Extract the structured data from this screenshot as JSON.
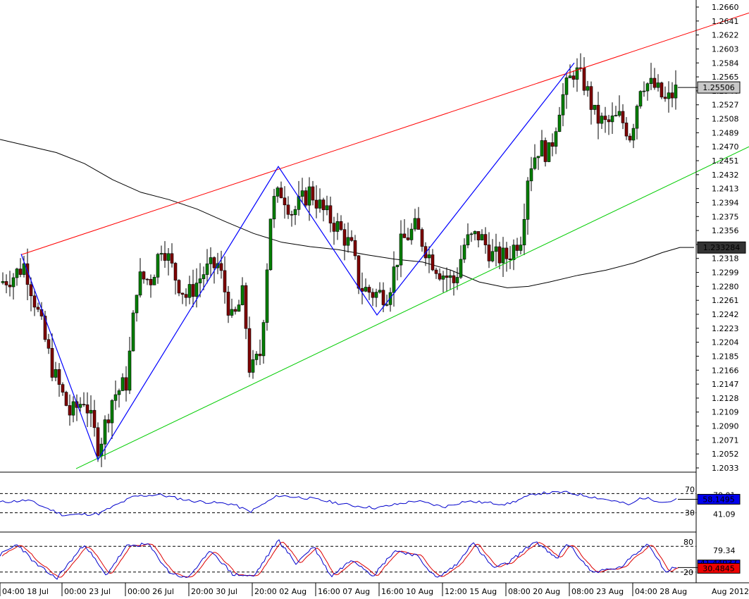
{
  "chart_data": {
    "type": "candlestick",
    "symbol_hint": "",
    "price_axis": {
      "ticks": [
        "1.2660",
        "1.2641",
        "1.2622",
        "1.2603",
        "1.2584",
        "1.2565",
        "1.2546",
        "1.2527",
        "1.2508",
        "1.2489",
        "1.2470",
        "1.2451",
        "1.2432",
        "1.2413",
        "1.2394",
        "1.2375",
        "1.2356",
        "1.2337",
        "1.2318",
        "1.2299",
        "1.2280",
        "1.2261",
        "1.2242",
        "1.2223",
        "1.2204",
        "1.2185",
        "1.2166",
        "1.2147",
        "1.2128",
        "1.2109",
        "1.2090",
        "1.2071",
        "1.2052",
        "1.2033"
      ],
      "ylim": [
        1.2024,
        1.2674
      ],
      "last_price_label": "1.25506",
      "ma_label": "1.233284"
    },
    "time_axis": {
      "labels": [
        "04:00 18 Jul",
        "00:00 23 Jul",
        "00:00 26 Jul",
        "20:00 30 Jul",
        "20:00 02 Aug",
        "16:00 07 Aug",
        "16:00 10 Aug",
        "12:00 15 Aug",
        "08:00 20 Aug",
        "08:00 23 Aug",
        "04:00 28 Aug"
      ],
      "right_label": "Aug 2012"
    },
    "rsi": {
      "levels": [
        "70",
        "30"
      ],
      "values_shown": [
        "70.01",
        "58.1495",
        "41.09"
      ],
      "colors": {
        "line": "#0000cc",
        "badge": "#0000ee"
      }
    },
    "stochastic": {
      "levels": [
        "80",
        "20"
      ],
      "values_shown": [
        "79.34",
        "41.44037",
        "30.4845"
      ],
      "colors": {
        "k": "#0000cc",
        "d": "#dd0000",
        "badge_d": "#ee0000"
      }
    },
    "colors": {
      "bull_candle": "#008000",
      "bear_candle": "#800000",
      "upper_channel": "#ff0000",
      "lower_channel": "#00cc00",
      "zigzag": "#0000ff",
      "moving_average": "#000000",
      "gridline": "#000000"
    },
    "upper_channel": [
      {
        "t": 30,
        "p": 1.2323
      },
      {
        "t": 1063,
        "p": 1.2652
      }
    ],
    "lower_channel": [
      {
        "t": 108,
        "p": 1.2032
      },
      {
        "t": 1063,
        "p": 1.247
      }
    ],
    "zigzag": [
      {
        "t": 30,
        "p": 1.2324
      },
      {
        "t": 139,
        "p": 1.2044
      },
      {
        "t": 395,
        "p": 1.2443
      },
      {
        "t": 535,
        "p": 1.2241
      },
      {
        "t": 815,
        "p": 1.2584
      }
    ],
    "moving_average": [
      {
        "t": 0,
        "p": 1.248
      },
      {
        "t": 40,
        "p": 1.2471
      },
      {
        "t": 80,
        "p": 1.2462
      },
      {
        "t": 120,
        "p": 1.2447
      },
      {
        "t": 160,
        "p": 1.2425
      },
      {
        "t": 200,
        "p": 1.2408
      },
      {
        "t": 240,
        "p": 1.2398
      },
      {
        "t": 280,
        "p": 1.2385
      },
      {
        "t": 320,
        "p": 1.2368
      },
      {
        "t": 360,
        "p": 1.2352
      },
      {
        "t": 400,
        "p": 1.234
      },
      {
        "t": 440,
        "p": 1.2334
      },
      {
        "t": 480,
        "p": 1.233
      },
      {
        "t": 520,
        "p": 1.2323
      },
      {
        "t": 560,
        "p": 1.2317
      },
      {
        "t": 600,
        "p": 1.2313
      },
      {
        "t": 640,
        "p": 1.2302
      },
      {
        "t": 680,
        "p": 1.2286
      },
      {
        "t": 720,
        "p": 1.2278
      },
      {
        "t": 750,
        "p": 1.228
      },
      {
        "t": 780,
        "p": 1.2286
      },
      {
        "t": 820,
        "p": 1.2295
      },
      {
        "t": 860,
        "p": 1.2302
      },
      {
        "t": 900,
        "p": 1.2312
      },
      {
        "t": 940,
        "p": 1.2326
      },
      {
        "t": 965,
        "p": 1.2333
      },
      {
        "t": 985,
        "p": 1.2333
      }
    ],
    "candle_anchors": [
      {
        "t": 0,
        "p": 1.2285
      },
      {
        "t": 20,
        "p": 1.2295
      },
      {
        "t": 35,
        "p": 1.231
      },
      {
        "t": 55,
        "p": 1.224
      },
      {
        "t": 75,
        "p": 1.2165
      },
      {
        "t": 100,
        "p": 1.2105
      },
      {
        "t": 120,
        "p": 1.2128
      },
      {
        "t": 140,
        "p": 1.206
      },
      {
        "t": 160,
        "p": 1.213
      },
      {
        "t": 180,
        "p": 1.215
      },
      {
        "t": 195,
        "p": 1.229
      },
      {
        "t": 215,
        "p": 1.229
      },
      {
        "t": 230,
        "p": 1.234
      },
      {
        "t": 250,
        "p": 1.229
      },
      {
        "t": 265,
        "p": 1.2265
      },
      {
        "t": 290,
        "p": 1.23
      },
      {
        "t": 310,
        "p": 1.231
      },
      {
        "t": 330,
        "p": 1.223
      },
      {
        "t": 345,
        "p": 1.227
      },
      {
        "t": 355,
        "p": 1.216
      },
      {
        "t": 370,
        "p": 1.219
      },
      {
        "t": 385,
        "p": 1.239
      },
      {
        "t": 400,
        "p": 1.241
      },
      {
        "t": 415,
        "p": 1.238
      },
      {
        "t": 440,
        "p": 1.241
      },
      {
        "t": 460,
        "p": 1.238
      },
      {
        "t": 480,
        "p": 1.236
      },
      {
        "t": 500,
        "p": 1.233
      },
      {
        "t": 510,
        "p": 1.228
      },
      {
        "t": 530,
        "p": 1.227
      },
      {
        "t": 550,
        "p": 1.227
      },
      {
        "t": 570,
        "p": 1.234
      },
      {
        "t": 590,
        "p": 1.236
      },
      {
        "t": 610,
        "p": 1.232
      },
      {
        "t": 625,
        "p": 1.23
      },
      {
        "t": 645,
        "p": 1.2285
      },
      {
        "t": 660,
        "p": 1.234
      },
      {
        "t": 680,
        "p": 1.235
      },
      {
        "t": 700,
        "p": 1.232
      },
      {
        "t": 720,
        "p": 1.232
      },
      {
        "t": 740,
        "p": 1.235
      },
      {
        "t": 750,
        "p": 1.244
      },
      {
        "t": 765,
        "p": 1.247
      },
      {
        "t": 780,
        "p": 1.246
      },
      {
        "t": 795,
        "p": 1.253
      },
      {
        "t": 815,
        "p": 1.2575
      },
      {
        "t": 830,
        "p": 1.2555
      },
      {
        "t": 845,
        "p": 1.251
      },
      {
        "t": 860,
        "p": 1.25
      },
      {
        "t": 880,
        "p": 1.251
      },
      {
        "t": 895,
        "p": 1.2485
      },
      {
        "t": 910,
        "p": 1.256
      },
      {
        "t": 930,
        "p": 1.255
      },
      {
        "t": 945,
        "p": 1.253
      },
      {
        "t": 962,
        "p": 1.255
      }
    ],
    "rsi_anchors": [
      {
        "t": 0,
        "v": 52
      },
      {
        "t": 40,
        "v": 56
      },
      {
        "t": 90,
        "v": 25
      },
      {
        "t": 140,
        "v": 28
      },
      {
        "t": 190,
        "v": 64
      },
      {
        "t": 225,
        "v": 68
      },
      {
        "t": 270,
        "v": 55
      },
      {
        "t": 330,
        "v": 48
      },
      {
        "t": 355,
        "v": 32
      },
      {
        "t": 395,
        "v": 66
      },
      {
        "t": 440,
        "v": 60
      },
      {
        "t": 500,
        "v": 45
      },
      {
        "t": 535,
        "v": 40
      },
      {
        "t": 590,
        "v": 55
      },
      {
        "t": 630,
        "v": 42
      },
      {
        "t": 660,
        "v": 54
      },
      {
        "t": 720,
        "v": 48
      },
      {
        "t": 760,
        "v": 70
      },
      {
        "t": 800,
        "v": 73
      },
      {
        "t": 830,
        "v": 66
      },
      {
        "t": 870,
        "v": 55
      },
      {
        "t": 895,
        "v": 46
      },
      {
        "t": 910,
        "v": 62
      },
      {
        "t": 945,
        "v": 52
      },
      {
        "t": 962,
        "v": 58
      }
    ],
    "stoch_anchors": [
      {
        "t": 0,
        "v": 60
      },
      {
        "t": 25,
        "v": 85
      },
      {
        "t": 50,
        "v": 40
      },
      {
        "t": 80,
        "v": 5
      },
      {
        "t": 120,
        "v": 85
      },
      {
        "t": 150,
        "v": 12
      },
      {
        "t": 180,
        "v": 80
      },
      {
        "t": 210,
        "v": 85
      },
      {
        "t": 240,
        "v": 20
      },
      {
        "t": 265,
        "v": 5
      },
      {
        "t": 300,
        "v": 70
      },
      {
        "t": 330,
        "v": 15
      },
      {
        "t": 360,
        "v": 10
      },
      {
        "t": 395,
        "v": 95
      },
      {
        "t": 420,
        "v": 40
      },
      {
        "t": 445,
        "v": 80
      },
      {
        "t": 470,
        "v": 10
      },
      {
        "t": 500,
        "v": 50
      },
      {
        "t": 530,
        "v": 12
      },
      {
        "t": 560,
        "v": 70
      },
      {
        "t": 590,
        "v": 60
      },
      {
        "t": 620,
        "v": 5
      },
      {
        "t": 650,
        "v": 40
      },
      {
        "t": 670,
        "v": 90
      },
      {
        "t": 700,
        "v": 30
      },
      {
        "t": 720,
        "v": 40
      },
      {
        "t": 760,
        "v": 92
      },
      {
        "t": 790,
        "v": 50
      },
      {
        "t": 805,
        "v": 88
      },
      {
        "t": 840,
        "v": 20
      },
      {
        "t": 880,
        "v": 30
      },
      {
        "t": 920,
        "v": 88
      },
      {
        "t": 945,
        "v": 20
      },
      {
        "t": 962,
        "v": 35
      }
    ]
  }
}
